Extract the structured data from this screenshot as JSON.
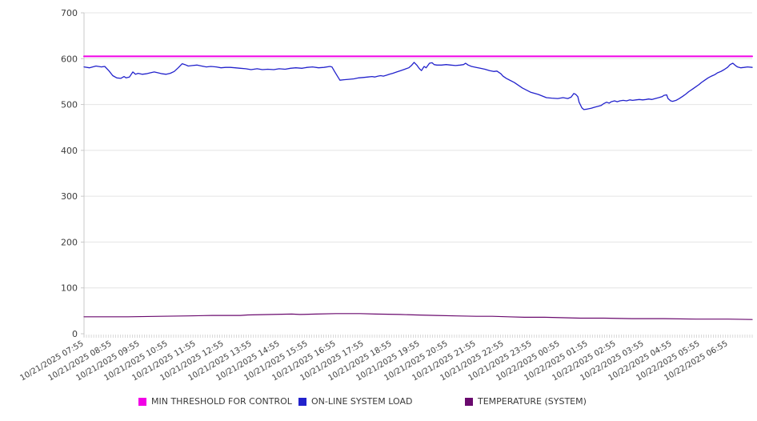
{
  "chart_data": {
    "type": "line",
    "title": "",
    "xlabel": "",
    "ylabel": "",
    "grid": true,
    "legend_position": "bottom",
    "x_axis": {
      "label_rotation_deg": -30,
      "labels": [
        "10/21/2025 07:55",
        "10/21/2025 08:55",
        "10/21/2025 09:55",
        "10/21/2025 10:55",
        "10/21/2025 11:55",
        "10/21/2025 12:55",
        "10/21/2025 13:55",
        "10/21/2025 14:55",
        "10/21/2025 15:55",
        "10/21/2025 16:55",
        "10/21/2025 17:55",
        "10/21/2025 18:55",
        "10/21/2025 19:55",
        "10/21/2025 20:55",
        "10/21/2025 21:55",
        "10/21/2025 22:55",
        "10/21/2025 23:55",
        "10/22/2025 00:55",
        "10/22/2025 01:55",
        "10/22/2025 02:55",
        "10/22/2025 03:55",
        "10/22/2025 04:55",
        "10/22/2025 05:55",
        "10/22/2025 06:55"
      ]
    },
    "y_axis": {
      "min": 0,
      "max": 700,
      "tick_step": 100,
      "ticks": [
        0,
        100,
        200,
        300,
        400,
        500,
        600,
        700
      ]
    },
    "series": [
      {
        "id": "min-threshold-for-control",
        "name": "MIN THRESHOLD FOR CONTROL",
        "color": "#f200e6",
        "width": 2,
        "type": "constant",
        "value": 605
      },
      {
        "id": "online-system-load",
        "name": "ON-LINE SYSTEM LOAD",
        "color": "#2222cc",
        "width": 1.3,
        "type": "points",
        "points": [
          [
            0.0,
            582
          ],
          [
            0.008,
            580
          ],
          [
            0.018,
            584
          ],
          [
            0.026,
            582
          ],
          [
            0.031,
            583
          ],
          [
            0.037,
            574
          ],
          [
            0.043,
            563
          ],
          [
            0.049,
            558
          ],
          [
            0.055,
            557
          ],
          [
            0.06,
            561
          ],
          [
            0.063,
            558
          ],
          [
            0.068,
            560
          ],
          [
            0.073,
            571
          ],
          [
            0.077,
            566
          ],
          [
            0.081,
            568
          ],
          [
            0.087,
            566
          ],
          [
            0.093,
            567
          ],
          [
            0.099,
            569
          ],
          [
            0.105,
            571
          ],
          [
            0.111,
            569
          ],
          [
            0.117,
            567
          ],
          [
            0.123,
            566
          ],
          [
            0.129,
            568
          ],
          [
            0.135,
            572
          ],
          [
            0.141,
            580
          ],
          [
            0.147,
            589
          ],
          [
            0.151,
            587
          ],
          [
            0.156,
            584
          ],
          [
            0.162,
            585
          ],
          [
            0.169,
            586
          ],
          [
            0.176,
            584
          ],
          [
            0.183,
            582
          ],
          [
            0.19,
            583
          ],
          [
            0.198,
            582
          ],
          [
            0.205,
            580
          ],
          [
            0.212,
            581
          ],
          [
            0.219,
            581
          ],
          [
            0.226,
            580
          ],
          [
            0.234,
            579
          ],
          [
            0.242,
            578
          ],
          [
            0.25,
            576
          ],
          [
            0.259,
            578
          ],
          [
            0.267,
            576
          ],
          [
            0.275,
            577
          ],
          [
            0.284,
            576
          ],
          [
            0.292,
            578
          ],
          [
            0.301,
            577
          ],
          [
            0.309,
            579
          ],
          [
            0.317,
            580
          ],
          [
            0.326,
            579
          ],
          [
            0.334,
            581
          ],
          [
            0.342,
            582
          ],
          [
            0.351,
            580
          ],
          [
            0.359,
            581
          ],
          [
            0.368,
            583
          ],
          [
            0.371,
            582
          ],
          [
            0.375,
            572
          ],
          [
            0.38,
            560
          ],
          [
            0.383,
            553
          ],
          [
            0.389,
            554
          ],
          [
            0.396,
            555
          ],
          [
            0.404,
            556
          ],
          [
            0.411,
            558
          ],
          [
            0.418,
            559
          ],
          [
            0.425,
            560
          ],
          [
            0.431,
            561
          ],
          [
            0.435,
            560
          ],
          [
            0.44,
            562
          ],
          [
            0.444,
            563
          ],
          [
            0.448,
            562
          ],
          [
            0.453,
            564
          ],
          [
            0.457,
            566
          ],
          [
            0.462,
            568
          ],
          [
            0.468,
            571
          ],
          [
            0.474,
            574
          ],
          [
            0.48,
            577
          ],
          [
            0.486,
            580
          ],
          [
            0.49,
            585
          ],
          [
            0.494,
            592
          ],
          [
            0.498,
            586
          ],
          [
            0.502,
            578
          ],
          [
            0.505,
            574
          ],
          [
            0.509,
            583
          ],
          [
            0.512,
            580
          ],
          [
            0.517,
            590
          ],
          [
            0.521,
            591
          ],
          [
            0.524,
            587
          ],
          [
            0.528,
            586
          ],
          [
            0.535,
            586
          ],
          [
            0.542,
            587
          ],
          [
            0.549,
            586
          ],
          [
            0.556,
            585
          ],
          [
            0.563,
            586
          ],
          [
            0.568,
            587
          ],
          [
            0.571,
            590
          ],
          [
            0.575,
            586
          ],
          [
            0.58,
            583
          ],
          [
            0.587,
            581
          ],
          [
            0.593,
            579
          ],
          [
            0.6,
            577
          ],
          [
            0.607,
            574
          ],
          [
            0.613,
            572
          ],
          [
            0.618,
            573
          ],
          [
            0.624,
            567
          ],
          [
            0.627,
            562
          ],
          [
            0.632,
            557
          ],
          [
            0.644,
            548
          ],
          [
            0.656,
            536
          ],
          [
            0.668,
            527
          ],
          [
            0.68,
            522
          ],
          [
            0.692,
            515
          ],
          [
            0.7,
            514
          ],
          [
            0.709,
            513
          ],
          [
            0.717,
            515
          ],
          [
            0.724,
            513
          ],
          [
            0.729,
            516
          ],
          [
            0.733,
            524
          ],
          [
            0.736,
            522
          ],
          [
            0.739,
            517
          ],
          [
            0.741,
            505
          ],
          [
            0.745,
            493
          ],
          [
            0.748,
            489
          ],
          [
            0.753,
            490
          ],
          [
            0.759,
            492
          ],
          [
            0.764,
            494
          ],
          [
            0.769,
            496
          ],
          [
            0.774,
            498
          ],
          [
            0.778,
            502
          ],
          [
            0.782,
            505
          ],
          [
            0.786,
            503
          ],
          [
            0.789,
            506
          ],
          [
            0.794,
            508
          ],
          [
            0.798,
            506
          ],
          [
            0.802,
            508
          ],
          [
            0.807,
            509
          ],
          [
            0.812,
            508
          ],
          [
            0.817,
            510
          ],
          [
            0.821,
            509
          ],
          [
            0.826,
            510
          ],
          [
            0.831,
            511
          ],
          [
            0.836,
            510
          ],
          [
            0.841,
            511
          ],
          [
            0.845,
            512
          ],
          [
            0.85,
            511
          ],
          [
            0.855,
            513
          ],
          [
            0.86,
            515
          ],
          [
            0.865,
            517
          ],
          [
            0.868,
            520
          ],
          [
            0.872,
            521
          ],
          [
            0.874,
            513
          ],
          [
            0.878,
            508
          ],
          [
            0.881,
            507
          ],
          [
            0.886,
            509
          ],
          [
            0.891,
            513
          ],
          [
            0.896,
            518
          ],
          [
            0.901,
            523
          ],
          [
            0.905,
            528
          ],
          [
            0.91,
            533
          ],
          [
            0.915,
            538
          ],
          [
            0.92,
            543
          ],
          [
            0.924,
            548
          ],
          [
            0.929,
            553
          ],
          [
            0.934,
            558
          ],
          [
            0.939,
            562
          ],
          [
            0.944,
            565
          ],
          [
            0.948,
            569
          ],
          [
            0.953,
            572
          ],
          [
            0.958,
            576
          ],
          [
            0.963,
            581
          ],
          [
            0.967,
            587
          ],
          [
            0.971,
            590
          ],
          [
            0.975,
            585
          ],
          [
            0.978,
            582
          ],
          [
            0.983,
            580
          ],
          [
            0.988,
            581
          ],
          [
            0.993,
            582
          ],
          [
            1.0,
            581
          ]
        ]
      },
      {
        "id": "temperature-system",
        "name": "TEMPERATURE (SYSTEM)",
        "color": "#6a0a6e",
        "width": 1.2,
        "type": "points",
        "points": [
          [
            0.0,
            37
          ],
          [
            0.066,
            37
          ],
          [
            0.114,
            38
          ],
          [
            0.156,
            39
          ],
          [
            0.192,
            40
          ],
          [
            0.234,
            40
          ],
          [
            0.245,
            41
          ],
          [
            0.281,
            42
          ],
          [
            0.311,
            43
          ],
          [
            0.323,
            42
          ],
          [
            0.347,
            43
          ],
          [
            0.377,
            44
          ],
          [
            0.413,
            44
          ],
          [
            0.437,
            43
          ],
          [
            0.473,
            42
          ],
          [
            0.497,
            41
          ],
          [
            0.527,
            40
          ],
          [
            0.557,
            39
          ],
          [
            0.587,
            38
          ],
          [
            0.611,
            38
          ],
          [
            0.635,
            37
          ],
          [
            0.659,
            36
          ],
          [
            0.689,
            36
          ],
          [
            0.713,
            35
          ],
          [
            0.743,
            34
          ],
          [
            0.778,
            34
          ],
          [
            0.82,
            33
          ],
          [
            0.868,
            33
          ],
          [
            0.916,
            32
          ],
          [
            0.964,
            32
          ],
          [
            1.0,
            31
          ]
        ]
      }
    ],
    "colors": {
      "grid": "#e4e4e4",
      "axis": "#c9c9c9",
      "tick_text": "#3d3d3d"
    }
  }
}
